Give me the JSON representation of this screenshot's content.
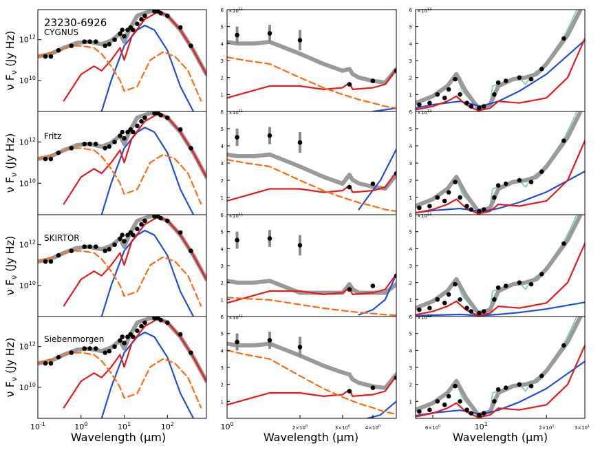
{
  "figure": {
    "object_name": "23230-6926",
    "xlabel": "Wavelength (μm)",
    "ylabel": "ν F",
    "ylabel_sub": "ν",
    "ylabel_unit": "(Jy Hz)",
    "colors": {
      "total": "#9a9a9a",
      "total_dark": "#7a7a7a",
      "starburst": "#e41a1c",
      "agn": "#1f4fd8",
      "host": "#ff6a13",
      "spectrum": "#7fd1b0",
      "phot": "#000000"
    }
  },
  "chart_data": [
    {
      "type": "line",
      "row": "CYGNUS",
      "panel": "full-SED",
      "title": "CYGNUS",
      "xscale": "log",
      "yscale": "log",
      "xlim": [
        0.1,
        800
      ],
      "ylim": [
        300000000.0,
        30000000000000.0
      ],
      "xticks": [
        "10^-1",
        "10^0",
        "10^1",
        "10^2"
      ],
      "yticks": [
        "10^10",
        "10^12"
      ],
      "series": [
        {
          "name": "total",
          "x": [
            0.1,
            0.2,
            0.4,
            0.8,
            1.5,
            3,
            5,
            8,
            10,
            13,
            20,
            40,
            60,
            100,
            200,
            400,
            800
          ],
          "y": [
            150000000000.0,
            200000000000.0,
            400000000000.0,
            700000000000.0,
            800000000000.0,
            600000000000.0,
            900000000000.0,
            2000000000000.0,
            800000000000.0,
            3000000000000.0,
            15000000000000.0,
            25000000000000.0,
            24000000000000.0,
            15000000000000.0,
            3000000000000.0,
            300000000000.0,
            20000000000.0
          ]
        },
        {
          "name": "starburst",
          "x": [
            0.4,
            1,
            2,
            3,
            5,
            8,
            10,
            15,
            30,
            60,
            100,
            200,
            400,
            800
          ],
          "y": [
            1000000000.0,
            20000000000.0,
            50000000000.0,
            30000000000.0,
            100000000000.0,
            400000000000.0,
            100000000000.0,
            1500000000000.0,
            10000000000000.0,
            23000000000000.0,
            16000000000000.0,
            3000000000000.0,
            300000000000.0,
            20000000000.0
          ]
        },
        {
          "name": "agn",
          "x": [
            3,
            5,
            10,
            20,
            30,
            50,
            100,
            200,
            400
          ],
          "y": [
            300000000.0,
            10000000000.0,
            500000000000.0,
            3000000000000.0,
            5000000000000.0,
            3000000000000.0,
            300000000000.0,
            5000000000.0,
            300000000.0
          ]
        },
        {
          "name": "host",
          "x": [
            0.1,
            0.3,
            0.6,
            1,
            2,
            3,
            5,
            8,
            10,
            20,
            40,
            80,
            150,
            300,
            600
          ],
          "y": [
            150000000000.0,
            300000000000.0,
            500000000000.0,
            500000000000.0,
            400000000000.0,
            200000000000.0,
            50000000000.0,
            10000000000.0,
            3000000000.0,
            5000000000.0,
            100000000000.0,
            250000000000.0,
            150000000000.0,
            30000000000.0,
            1000000000.0
          ]
        }
      ],
      "points": {
        "x": [
          0.15,
          0.2,
          0.3,
          0.6,
          1.2,
          1.6,
          2.2,
          3.6,
          4.5,
          6,
          8,
          9,
          10,
          12,
          14,
          16,
          20,
          25,
          30,
          50,
          60,
          70,
          100,
          200,
          350
        ],
        "y": [
          150000000000.0,
          150000000000.0,
          300000000000.0,
          500000000000.0,
          800000000000.0,
          800000000000.0,
          800000000000.0,
          500000000000.0,
          600000000000.0,
          1000000000000.0,
          2000000000000.0,
          3000000000000.0,
          1500000000000.0,
          3000000000000.0,
          4000000000000.0,
          3000000000000.0,
          6000000000000.0,
          10000000000000.0,
          15000000000000.0,
          25000000000000.0,
          25000000000000.0,
          20000000000000.0,
          15000000000000.0,
          4000000000000.0,
          500000000000.0
        ]
      }
    },
    {
      "type": "line",
      "row": "CYGNUS",
      "panel": "near-IR",
      "xscale": "log",
      "xlim": [
        1,
        5
      ],
      "ylim": [
        0,
        600000000000.0
      ],
      "xticks": [
        "10^0",
        "2×10^0",
        "3×10^0",
        "4×10^0"
      ],
      "yticks": [
        "1",
        "2",
        "3",
        "4",
        "5",
        "6"
      ],
      "multiplier": "×10^11",
      "series": [
        {
          "name": "total",
          "x": [
            1,
            1.1,
            1.3,
            1.5,
            2,
            2.5,
            3,
            3.2,
            3.3,
            3.5,
            4,
            4.5,
            5
          ],
          "y": [
            410000000000.0,
            400000000000.0,
            400000000000.0,
            410000000000.0,
            340000000000.0,
            280000000000.0,
            240000000000.0,
            250000000000.0,
            220000000000.0,
            200000000000.0,
            180000000000.0,
            170000000000.0,
            250000000000.0
          ]
        },
        {
          "name": "starburst",
          "x": [
            1,
            1.5,
            2,
            2.5,
            3,
            3.2,
            3.3,
            4,
            4.5,
            5
          ],
          "y": [
            80000000000.0,
            150000000000.0,
            150000000000.0,
            130000000000.0,
            140000000000.0,
            170000000000.0,
            130000000000.0,
            140000000000.0,
            160000000000.0,
            250000000000.0
          ]
        },
        {
          "name": "host",
          "x": [
            1,
            1.2,
            1.5,
            2,
            2.5,
            3,
            3.5,
            4,
            4.5,
            5
          ],
          "y": [
            320000000000.0,
            300000000000.0,
            280000000000.0,
            200000000000.0,
            140000000000.0,
            100000000000.0,
            70000000000.0,
            50000000000.0,
            30000000000.0,
            20000000000.0
          ]
        },
        {
          "name": "agn",
          "x": [
            4,
            4.5,
            5
          ],
          "y": [
            0,
            10000000000.0,
            20000000000.0
          ]
        }
      ],
      "points": {
        "x": [
          1.1,
          1.5,
          2,
          3.2,
          4,
          5
        ],
        "y": [
          450000000000.0,
          460000000000.0,
          420000000000.0,
          160000000000.0,
          180000000000.0,
          240000000000.0
        ],
        "err": [
          50000000000.0,
          50000000000.0,
          60000000000.0,
          0,
          0,
          0
        ]
      }
    },
    {
      "type": "line",
      "row": "CYGNUS",
      "panel": "mid-IR",
      "xscale": "log",
      "xlim": [
        5,
        30
      ],
      "ylim": [
        0,
        6000000000000.0
      ],
      "xticks": [
        "6×10^0",
        "10^1",
        "2×10^1",
        "3×10^1"
      ],
      "yticks": [
        "1",
        "2",
        "3",
        "4",
        "5",
        "6"
      ],
      "multiplier": "×10^12",
      "series": [
        {
          "name": "total",
          "x": [
            5,
            6,
            7,
            7.7,
            8.5,
            9.7,
            11,
            12,
            14,
            16,
            18,
            20,
            25,
            30
          ],
          "y": [
            500000000000.0,
            900000000000.0,
            1500000000000.0,
            2200000000000.0,
            1200000000000.0,
            200000000000.0,
            400000000000.0,
            1500000000000.0,
            1900000000000.0,
            2000000000000.0,
            2200000000000.0,
            2800000000000.0,
            4500000000000.0,
            6500000000000.0
          ]
        },
        {
          "name": "agn",
          "x": [
            5,
            6,
            8,
            10,
            12,
            15,
            20,
            25,
            30
          ],
          "y": [
            200000000000.0,
            400000000000.0,
            600000000000.0,
            300000000000.0,
            600000000000.0,
            1200000000000.0,
            2200000000000.0,
            3300000000000.0,
            4200000000000.0
          ]
        },
        {
          "name": "starburst",
          "x": [
            5,
            6,
            7,
            7.7,
            8.5,
            9.7,
            11,
            12,
            15,
            20,
            25,
            30
          ],
          "y": [
            100000000000.0,
            300000000000.0,
            600000000000.0,
            900000000000.0,
            400000000000.0,
            50000000000.0,
            200000000000.0,
            600000000000.0,
            500000000000.0,
            800000000000.0,
            2000000000000.0,
            4300000000000.0
          ]
        }
      ],
      "points": {
        "x": [
          5.2,
          5.8,
          6.3,
          6.8,
          7.1,
          7.6,
          8,
          8.6,
          9,
          9.8,
          10.3,
          11.5,
          12,
          13,
          15,
          17,
          19,
          24
        ],
        "y": [
          400000000000.0,
          500000000000.0,
          1000000000000.0,
          800000000000.0,
          1300000000000.0,
          1900000000000.0,
          1000000000000.0,
          500000000000.0,
          300000000000.0,
          200000000000.0,
          300000000000.0,
          1000000000000.0,
          1700000000000.0,
          1800000000000.0,
          2000000000000.0,
          1900000000000.0,
          2500000000000.0,
          4300000000000.0
        ]
      }
    },
    {
      "type": "line",
      "row": "Fritz",
      "panel": "full-SED",
      "title": "Fritz",
      "xscale": "log",
      "yscale": "log",
      "xlim": [
        0.1,
        800
      ],
      "ylim": [
        300000000.0,
        30000000000000.0
      ]
    },
    {
      "type": "line",
      "row": "Fritz",
      "panel": "near-IR",
      "xscale": "log",
      "xlim": [
        1,
        5
      ],
      "ylim": [
        0,
        600000000000.0
      ],
      "multiplier": "×10^11"
    },
    {
      "type": "line",
      "row": "Fritz",
      "panel": "mid-IR",
      "xscale": "log",
      "xlim": [
        5,
        30
      ],
      "ylim": [
        0,
        6000000000000.0
      ],
      "multiplier": "×10^12"
    },
    {
      "type": "line",
      "row": "SKIRTOR",
      "panel": "full-SED",
      "title": "SKIRTOR",
      "xscale": "log",
      "yscale": "log",
      "xlim": [
        0.1,
        800
      ],
      "ylim": [
        300000000.0,
        30000000000000.0
      ]
    },
    {
      "type": "line",
      "row": "SKIRTOR",
      "panel": "near-IR",
      "xscale": "log",
      "xlim": [
        1,
        5
      ],
      "ylim": [
        0,
        600000000000.0
      ],
      "multiplier": "×10^11"
    },
    {
      "type": "line",
      "row": "SKIRTOR",
      "panel": "mid-IR",
      "xscale": "log",
      "xlim": [
        5,
        30
      ],
      "ylim": [
        0,
        6000000000000.0
      ],
      "multiplier": "×10^12"
    },
    {
      "type": "line",
      "row": "Siebenmorgen",
      "panel": "full-SED",
      "title": "Siebenmorgen",
      "xscale": "log",
      "yscale": "log",
      "xlim": [
        0.1,
        800
      ],
      "ylim": [
        300000000.0,
        30000000000000.0
      ]
    },
    {
      "type": "line",
      "row": "Siebenmorgen",
      "panel": "near-IR",
      "xscale": "log",
      "xlim": [
        1,
        5
      ],
      "ylim": [
        0,
        600000000000.0
      ],
      "multiplier": "×10^11"
    },
    {
      "type": "line",
      "row": "Siebenmorgen",
      "panel": "mid-IR",
      "xscale": "log",
      "xlim": [
        5,
        30
      ],
      "ylim": [
        0,
        6000000000000.0
      ],
      "multiplier": "×10^12"
    }
  ]
}
